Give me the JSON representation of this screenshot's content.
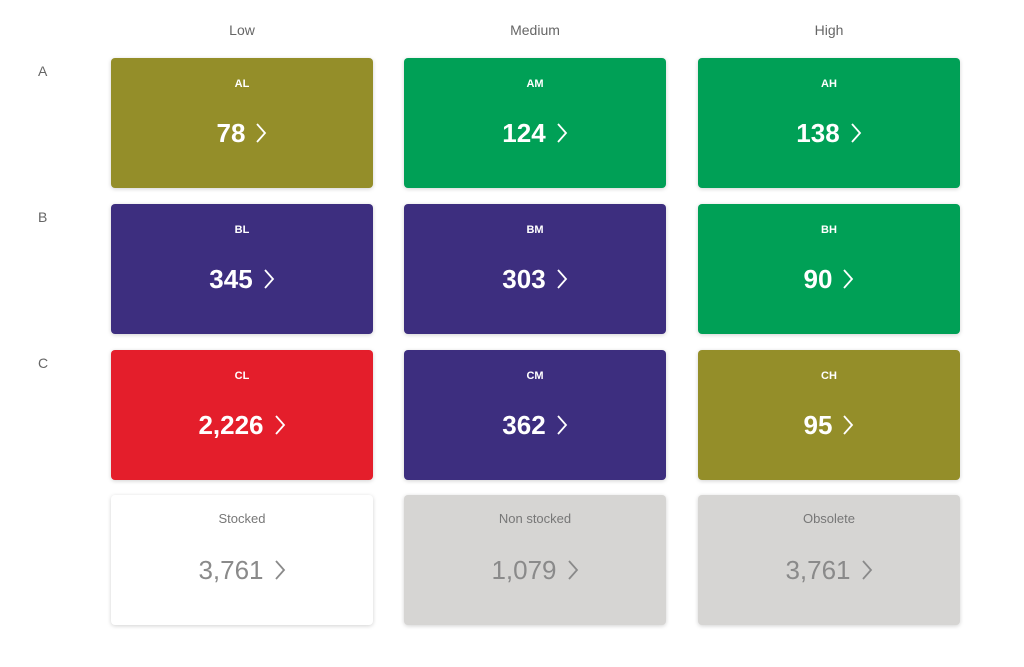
{
  "header": {
    "columns": [
      "Low",
      "Medium",
      "High"
    ]
  },
  "rows": [
    {
      "label": "A",
      "cards": [
        {
          "label": "AL",
          "value": "78",
          "color": "#948e29"
        },
        {
          "label": "AM",
          "value": "124",
          "color": "#00a056"
        },
        {
          "label": "AH",
          "value": "138",
          "color": "#00a056"
        }
      ]
    },
    {
      "label": "B",
      "cards": [
        {
          "label": "BL",
          "value": "345",
          "color": "#3d2e7f"
        },
        {
          "label": "BM",
          "value": "303",
          "color": "#3d2e7f"
        },
        {
          "label": "BH",
          "value": "90",
          "color": "#00a056"
        }
      ]
    },
    {
      "label": "C",
      "cards": [
        {
          "label": "CL",
          "value": "2,226",
          "color": "#e41e2b"
        },
        {
          "label": "CM",
          "value": "362",
          "color": "#3d2e7f"
        },
        {
          "label": "CH",
          "value": "95",
          "color": "#948e29"
        }
      ]
    }
  ],
  "totals": [
    {
      "label": "Stocked",
      "value": "3,761",
      "color": "#ffffff"
    },
    {
      "label": "Non stocked",
      "value": "1,079",
      "color": "#d6d5d3"
    },
    {
      "label": "Obsolete",
      "value": "3,761",
      "color": "#d6d5d3"
    }
  ]
}
